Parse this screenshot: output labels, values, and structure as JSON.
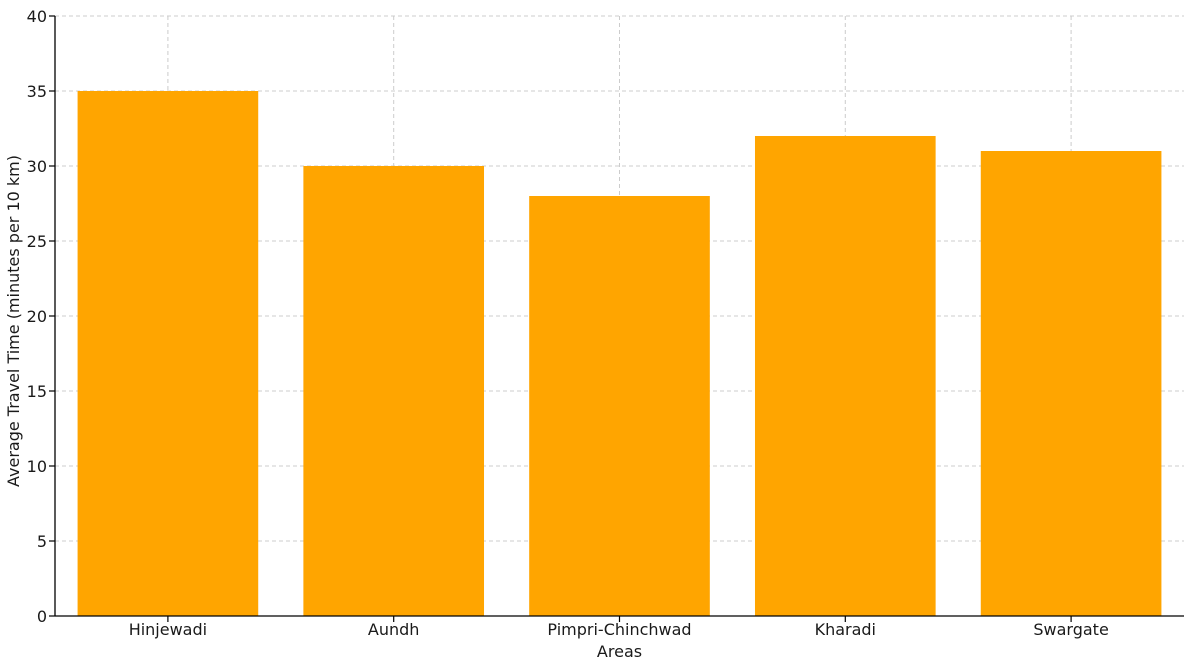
{
  "chart_data": {
    "type": "bar",
    "categories": [
      "Hinjewadi",
      "Aundh",
      "Pimpri-Chinchwad",
      "Kharadi",
      "Swargate"
    ],
    "values": [
      35,
      30,
      28,
      32,
      31
    ],
    "title": "",
    "xlabel": "Areas",
    "ylabel": "Average Travel Time (minutes per 10 km)",
    "ylim": [
      0,
      40
    ],
    "yticks": [
      0,
      5,
      10,
      15,
      20,
      25,
      30,
      35,
      40
    ],
    "grid": true,
    "bar_color": "#FFA500"
  }
}
